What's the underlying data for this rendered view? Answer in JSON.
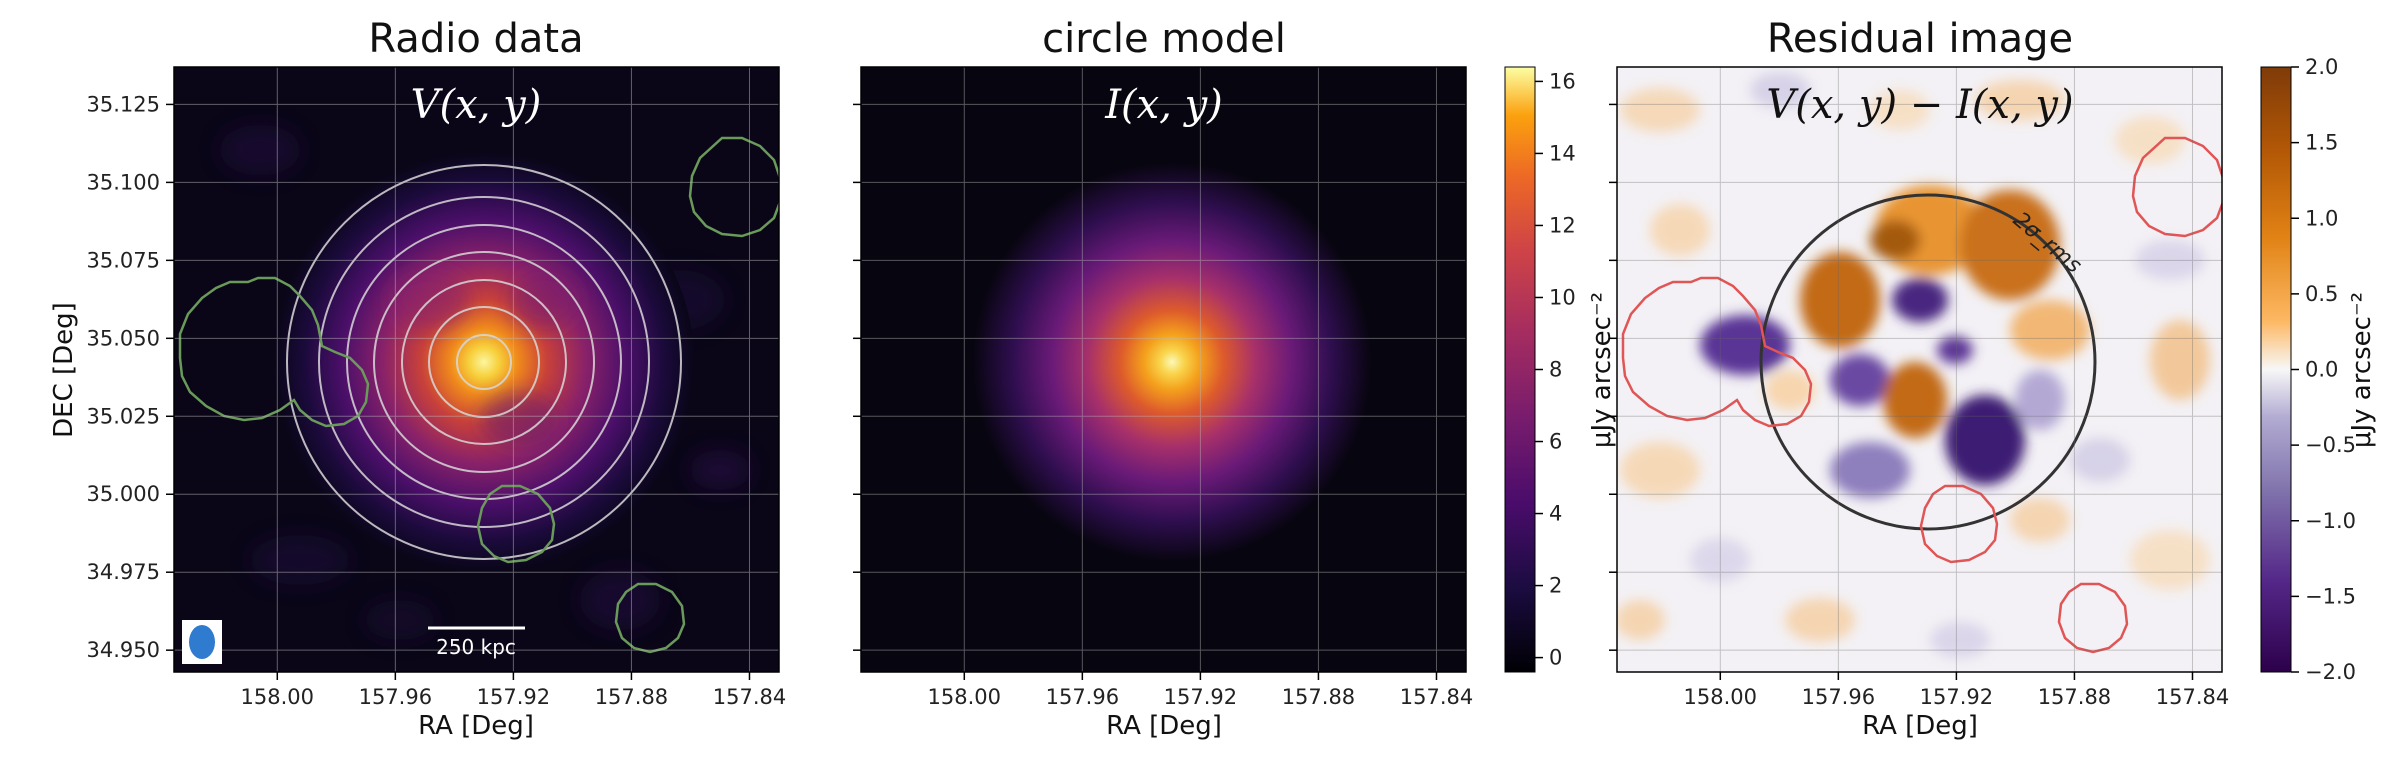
{
  "figure": {
    "panels": [
      {
        "title": "Radio data",
        "overlay": "V(x, y)"
      },
      {
        "title": "circle model",
        "overlay": "I(x, y)"
      },
      {
        "title": "Residual image",
        "overlay": "V(x, y) − I(x, y)"
      }
    ],
    "xlabel": "RA [Deg]",
    "ylabel": "DEC [Deg]",
    "scale_bar_label": "250 kpc",
    "ring_label": "2σ_rms",
    "colorbar1_label": "μJy arcsec⁻²",
    "colorbar2_label": "μJy arcsec⁻²",
    "colors": {
      "mask_green": "#6a9a5a",
      "mask_red": "#e05555",
      "beam": "#2f7bd0"
    }
  },
  "chart_data": [
    {
      "type": "heatmap",
      "title": "Radio data",
      "annotation": "V(x, y)",
      "xlabel": "RA [Deg]",
      "ylabel": "DEC [Deg]",
      "xticks": [
        "158.00",
        "157.96",
        "157.92",
        "157.88",
        "157.84"
      ],
      "yticks": [
        "35.125",
        "35.100",
        "35.075",
        "35.050",
        "35.025",
        "35.000",
        "34.975",
        "34.950"
      ],
      "xlim": [
        158.035,
        157.83
      ],
      "ylim": [
        34.943,
        35.137
      ],
      "x_inverted": true,
      "scale_bar": "250 kpc",
      "colormap": "inferno",
      "grid": true
    },
    {
      "type": "heatmap",
      "title": "circle model",
      "annotation": "I(x, y)",
      "xlabel": "RA [Deg]",
      "xticks": [
        "158.00",
        "157.96",
        "157.92",
        "157.88",
        "157.84"
      ],
      "xlim": [
        158.035,
        157.83
      ],
      "ylim": [
        34.943,
        35.137
      ],
      "colormap": "inferno",
      "colorbar": {
        "label": "μJy arcsec⁻²",
        "ticks": [
          0,
          2,
          4,
          6,
          8,
          10,
          12,
          14,
          16
        ],
        "range": [
          -0.4,
          16.4
        ]
      },
      "grid": true
    },
    {
      "type": "heatmap",
      "title": "Residual image",
      "annotation": "V(x, y) − I(x, y)",
      "xlabel": "RA [Deg]",
      "xticks": [
        "158.00",
        "157.96",
        "157.92",
        "157.88",
        "157.84"
      ],
      "xlim": [
        158.035,
        157.83
      ],
      "ylim": [
        34.943,
        35.137
      ],
      "colormap": "PuOr_r",
      "colorbar": {
        "label": "μJy arcsec⁻²",
        "ticks": [
          "2.0",
          "1.5",
          "1.0",
          "0.5",
          "0.0",
          "−0.5",
          "−1.0",
          "−1.5",
          "−2.0"
        ],
        "range": [
          -2.0,
          2.0
        ]
      },
      "ring_annotation": "2σ_rms",
      "grid": true
    }
  ]
}
